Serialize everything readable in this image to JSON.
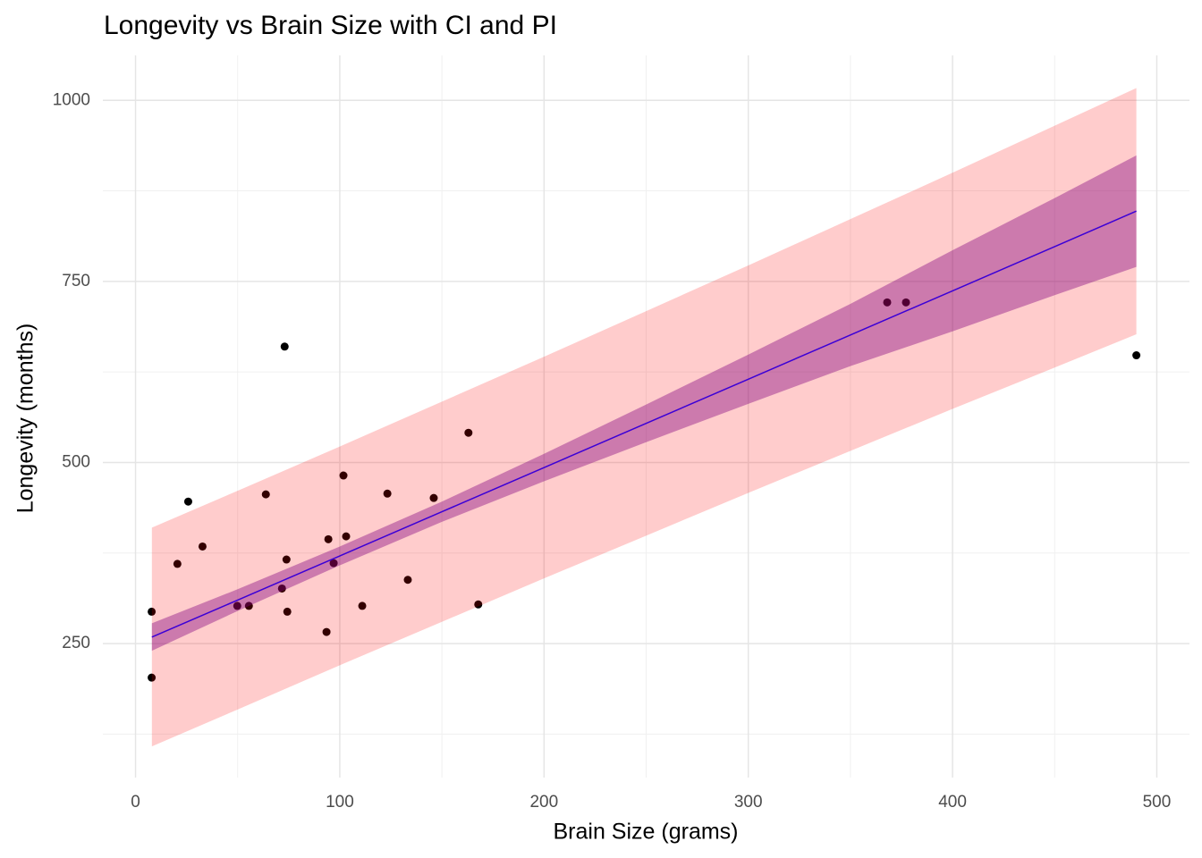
{
  "chart_data": {
    "type": "scatter",
    "title": "Longevity vs Brain Size with CI and PI",
    "x_label": "Brain Size (grams)",
    "y_label": "Longevity (months)",
    "xlim": [
      -16,
      516
    ],
    "ylim": [
      65,
      1062
    ],
    "xticks": [
      0,
      100,
      200,
      300,
      400,
      500
    ],
    "yticks": [
      250,
      500,
      750,
      1000
    ],
    "x_minor_ticks": [
      50,
      150,
      250,
      350,
      450
    ],
    "y_minor_ticks": [
      125,
      375,
      625,
      875
    ],
    "grid": true,
    "points": {
      "color": "#000000",
      "x": [
        7.9,
        7.9,
        20.5,
        25.8,
        32.8,
        49.8,
        55.5,
        63.8,
        71.7,
        73,
        73.9,
        74.3,
        93.5,
        94.4,
        97,
        101.8,
        103.1,
        111,
        123.3,
        133.3,
        146,
        163,
        167.8,
        368,
        377.2,
        490
      ],
      "values": [
        203,
        294,
        360,
        446,
        384,
        302,
        302,
        456,
        326,
        660,
        366,
        294,
        266,
        394,
        361,
        482,
        398,
        302,
        457,
        338,
        451,
        541,
        304,
        721,
        721,
        648
      ]
    },
    "pi": {
      "color": "#ff0000",
      "opacity": 0.2,
      "x": [
        8,
        50,
        100,
        150,
        200,
        250,
        300,
        350,
        400,
        450,
        490
      ],
      "lower": [
        108,
        159,
        220,
        280,
        340,
        399,
        458,
        516,
        574,
        631,
        677
      ],
      "upper": [
        410,
        461,
        522,
        584,
        646,
        709,
        772,
        836,
        900,
        965,
        1017
      ]
    },
    "ci": {
      "color": "#800080",
      "opacity": 0.4,
      "x": [
        8,
        50,
        100,
        150,
        200,
        250,
        300,
        350,
        400,
        450,
        490
      ],
      "lower": [
        240,
        295,
        358,
        418,
        474,
        528,
        581,
        633,
        681,
        731,
        770
      ],
      "upper": [
        278,
        325,
        384,
        446,
        512,
        580,
        649,
        719,
        793,
        865,
        924
      ]
    },
    "fit": {
      "color": "#3b00d6",
      "x": [
        8,
        50,
        100,
        150,
        200,
        250,
        300,
        350,
        400,
        450,
        490
      ],
      "values": [
        259,
        310,
        371,
        432,
        493,
        554,
        615,
        676,
        737,
        798,
        847
      ]
    }
  }
}
